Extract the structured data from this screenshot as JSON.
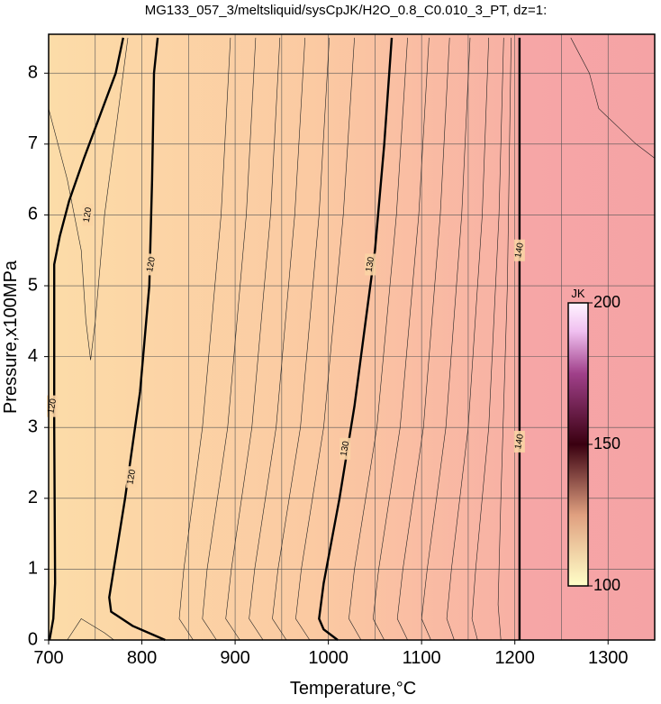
{
  "chart_data": {
    "type": "contour",
    "title": "MG133_057_3/meltsliquid/sysCpJK/H2O_0.8_C0.010_3_PT, dz=1:",
    "x_label": "Temperature,°C",
    "y_label": "Pressure,x100MPa",
    "xlim": [
      700,
      1350
    ],
    "ylim": [
      0,
      8.55
    ],
    "xticks": [
      700,
      800,
      900,
      1000,
      1100,
      1200,
      1300
    ],
    "yticks": [
      0,
      1,
      2,
      3,
      4,
      5,
      6,
      7,
      8
    ],
    "xgrid": [
      750,
      800,
      850,
      900,
      950,
      1000,
      1050,
      1100,
      1150,
      1200,
      1250,
      1300
    ],
    "grid": true,
    "contours": [
      {
        "level": 120,
        "points": [
          [
            701,
            0
          ],
          [
            705,
            0.3
          ],
          [
            707,
            0.8
          ],
          [
            706,
            3
          ],
          [
            706,
            5.3
          ],
          [
            712,
            5.7
          ],
          [
            722,
            6.2
          ],
          [
            738,
            6.8
          ],
          [
            755,
            7.4
          ],
          [
            772,
            8.0
          ],
          [
            780,
            8.5
          ]
        ]
      },
      {
        "level": 120,
        "points": [
          [
            825,
            0
          ],
          [
            790,
            0.2
          ],
          [
            767,
            0.4
          ],
          [
            765,
            0.6
          ],
          [
            782,
            2
          ],
          [
            798,
            3.5
          ],
          [
            808,
            5
          ],
          [
            811,
            6.5
          ],
          [
            813,
            8
          ],
          [
            817,
            8.5
          ]
        ]
      },
      {
        "level": 130,
        "points": [
          [
            1010,
            0
          ],
          [
            995,
            0.15
          ],
          [
            990,
            0.3
          ],
          [
            995,
            0.8
          ],
          [
            1012,
            2
          ],
          [
            1028,
            3.3
          ],
          [
            1040,
            4.5
          ],
          [
            1050,
            5.5
          ],
          [
            1060,
            7
          ],
          [
            1068,
            8.5
          ]
        ]
      },
      {
        "level": 140,
        "points": [
          [
            1205,
            0
          ],
          [
            1205,
            2
          ],
          [
            1205,
            4
          ],
          [
            1205,
            6
          ],
          [
            1205,
            8.5
          ]
        ]
      }
    ],
    "thin_contours": [
      [
        [
          855,
          0
        ],
        [
          840,
          0.3
        ],
        [
          845,
          1
        ],
        [
          865,
          3
        ],
        [
          885,
          6
        ],
        [
          895,
          8.5
        ]
      ],
      [
        [
          880,
          0
        ],
        [
          865,
          0.3
        ],
        [
          870,
          1
        ],
        [
          892,
          3
        ],
        [
          912,
          6
        ],
        [
          922,
          8.5
        ]
      ],
      [
        [
          905,
          0
        ],
        [
          890,
          0.3
        ],
        [
          896,
          1
        ],
        [
          918,
          3
        ],
        [
          938,
          6
        ],
        [
          948,
          8.5
        ]
      ],
      [
        [
          930,
          0
        ],
        [
          915,
          0.3
        ],
        [
          921,
          1
        ],
        [
          944,
          3
        ],
        [
          964,
          6
        ],
        [
          975,
          8.5
        ]
      ],
      [
        [
          955,
          0
        ],
        [
          940,
          0.3
        ],
        [
          946,
          1
        ],
        [
          970,
          3
        ],
        [
          990,
          6
        ],
        [
          1001,
          8.5
        ]
      ],
      [
        [
          980,
          0
        ],
        [
          965,
          0.3
        ],
        [
          971,
          1
        ],
        [
          995,
          3
        ],
        [
          1016,
          6
        ],
        [
          1028,
          8.5
        ]
      ],
      [
        [
          1035,
          0
        ],
        [
          1022,
          0.3
        ],
        [
          1028,
          1
        ],
        [
          1052,
          3
        ],
        [
          1073,
          6
        ],
        [
          1085,
          8.5
        ]
      ],
      [
        [
          1060,
          0
        ],
        [
          1048,
          0.3
        ],
        [
          1054,
          1
        ],
        [
          1077,
          3
        ],
        [
          1097,
          6
        ],
        [
          1108,
          8.5
        ]
      ],
      [
        [
          1085,
          0
        ],
        [
          1074,
          0.3
        ],
        [
          1080,
          1
        ],
        [
          1102,
          3
        ],
        [
          1120,
          6
        ],
        [
          1130,
          8.5
        ]
      ],
      [
        [
          1110,
          0
        ],
        [
          1100,
          0.3
        ],
        [
          1106,
          1
        ],
        [
          1126,
          3
        ],
        [
          1143,
          6
        ],
        [
          1152,
          8.5
        ]
      ],
      [
        [
          1135,
          0
        ],
        [
          1127,
          0.3
        ],
        [
          1132,
          1
        ],
        [
          1150,
          3
        ],
        [
          1165,
          6
        ],
        [
          1172,
          8.5
        ]
      ],
      [
        [
          1160,
          0
        ],
        [
          1154,
          0.3
        ],
        [
          1158,
          1
        ],
        [
          1172,
          3
        ],
        [
          1183,
          6
        ],
        [
          1188,
          8.5
        ]
      ],
      [
        [
          1185,
          0
        ],
        [
          1182,
          0.5
        ],
        [
          1185,
          2
        ],
        [
          1192,
          5
        ],
        [
          1196,
          8.5
        ]
      ],
      [
        [
          720,
          0
        ],
        [
          735,
          0.3
        ],
        [
          760,
          0.1
        ],
        [
          770,
          0
        ]
      ],
      [
        [
          700,
          7.5
        ],
        [
          720,
          6.5
        ],
        [
          735,
          5.5
        ],
        [
          740,
          4.5
        ],
        [
          745,
          3.95
        ],
        [
          750,
          4.5
        ],
        [
          760,
          6
        ],
        [
          775,
          7.5
        ],
        [
          785,
          8.5
        ]
      ],
      [
        [
          1260,
          8.5
        ],
        [
          1280,
          8
        ],
        [
          1290,
          7.5
        ],
        [
          1330,
          7
        ],
        [
          1350,
          6.8
        ]
      ]
    ],
    "colorbar": {
      "label": "JK",
      "lim": [
        100,
        200
      ],
      "ticks": [
        100,
        150,
        200
      ]
    }
  }
}
